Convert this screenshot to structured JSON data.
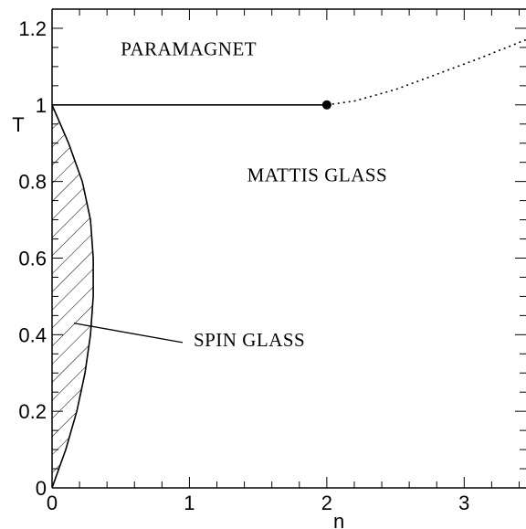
{
  "chart_data": {
    "type": "line",
    "xlabel": "n",
    "ylabel": "T",
    "xlim": [
      0,
      3.45
    ],
    "ylim": [
      0,
      1.25
    ],
    "x_ticks": [
      0,
      1,
      2,
      3
    ],
    "x_tick_labels": [
      "0",
      "1",
      "2",
      "3"
    ],
    "y_ticks": [
      0,
      0.2,
      0.4,
      0.6,
      0.8,
      1,
      1.2
    ],
    "y_tick_labels": [
      "0",
      "0.2",
      "0.4",
      "0.6",
      "0.8",
      "1",
      "1.2"
    ],
    "grid": false,
    "series": [
      {
        "style": "solid",
        "x": [
          0,
          2
        ],
        "y": [
          1,
          1
        ]
      },
      {
        "style": "dotted",
        "x": [
          2,
          2.2,
          2.5,
          2.8,
          3.1,
          3.45
        ],
        "y": [
          1,
          1.01,
          1.04,
          1.08,
          1.12,
          1.17
        ]
      },
      {
        "style": "solid-boundary",
        "x": [
          0,
          0.1,
          0.18,
          0.24,
          0.28,
          0.3,
          0.3,
          0.28,
          0.22,
          0.12,
          0
        ],
        "y": [
          0,
          0.1,
          0.2,
          0.3,
          0.4,
          0.5,
          0.6,
          0.7,
          0.8,
          0.9,
          1
        ]
      }
    ],
    "points": [
      {
        "x": 2,
        "y": 1
      }
    ],
    "annotations": [
      {
        "text": "PARAMAGNET",
        "x": 0.5,
        "y": 1.13
      },
      {
        "text": "MATTIS GLASS",
        "x": 1.42,
        "y": 0.8
      },
      {
        "text": "SPIN GLASS",
        "x": 1.03,
        "y": 0.37,
        "arrow_to": {
          "x": 0.16,
          "y": 0.43
        }
      }
    ],
    "hatched_region": "SPIN GLASS"
  }
}
